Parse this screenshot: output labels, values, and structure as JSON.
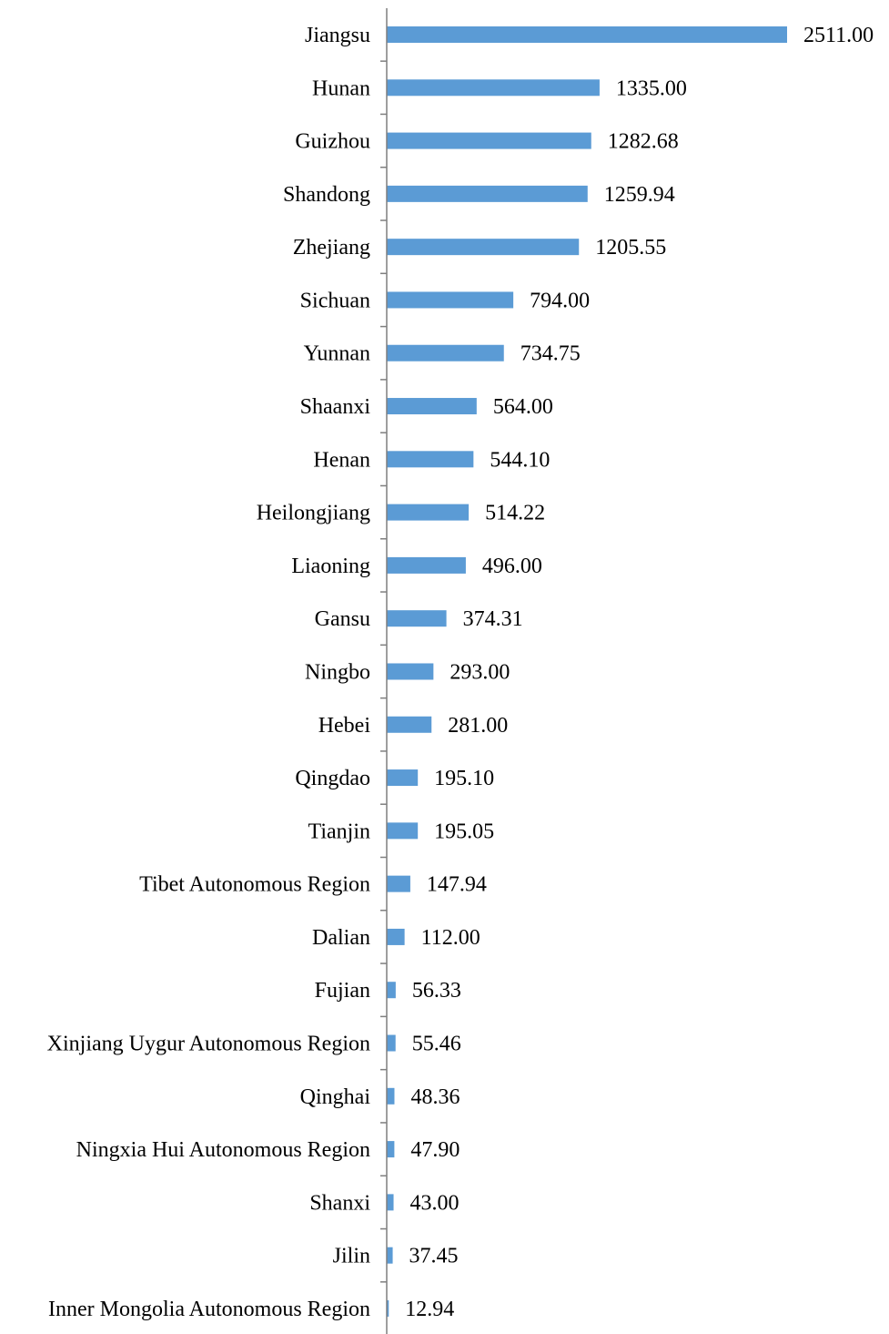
{
  "chart_data": {
    "type": "bar",
    "orientation": "horizontal",
    "title": "",
    "xlabel": "",
    "ylabel": "",
    "grid": false,
    "legend": "none",
    "bar_color": "#5b9bd5",
    "axis_color": "#7f7f7f",
    "xlim": [
      0,
      2511
    ],
    "categories": [
      "Jiangsu",
      "Hunan",
      "Guizhou",
      "Shandong",
      "Zhejiang",
      "Sichuan",
      "Yunnan",
      "Shaanxi",
      "Henan",
      "Heilongjiang",
      "Liaoning",
      "Gansu",
      "Ningbo",
      "Hebei",
      "Qingdao",
      "Tianjin",
      "Tibet Autonomous Region",
      "Dalian",
      "Fujian",
      "Xinjiang Uygur Autonomous Region",
      "Qinghai",
      "Ningxia Hui Autonomous Region",
      "Shanxi",
      "Jilin",
      "Inner Mongolia Autonomous Region"
    ],
    "values": [
      2511.0,
      1335.0,
      1282.68,
      1259.94,
      1205.55,
      794.0,
      734.75,
      564.0,
      544.1,
      514.22,
      496.0,
      374.31,
      293.0,
      281.0,
      195.1,
      195.05,
      147.94,
      112.0,
      56.33,
      55.46,
      48.36,
      47.9,
      43.0,
      37.45,
      12.94
    ],
    "value_labels": [
      "2511.00",
      "1335.00",
      "1282.68",
      "1259.94",
      "1205.55",
      "794.00",
      "734.75",
      "564.00",
      "544.10",
      "514.22",
      "496.00",
      "374.31",
      "293.00",
      "281.00",
      "195.10",
      "195.05",
      "147.94",
      "112.00",
      "56.33",
      "55.46",
      "48.36",
      "47.90",
      "43.00",
      "37.45",
      "12.94"
    ]
  }
}
